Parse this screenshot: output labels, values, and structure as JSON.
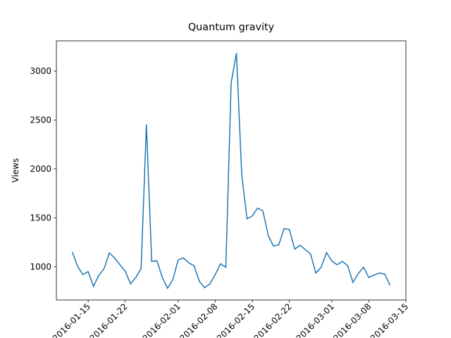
{
  "chart_data": {
    "type": "line",
    "title": "Quantum gravity",
    "ylabel": "Views",
    "x": [
      "2016-01-12",
      "2016-01-13",
      "2016-01-14",
      "2016-01-15",
      "2016-01-16",
      "2016-01-17",
      "2016-01-18",
      "2016-01-19",
      "2016-01-20",
      "2016-01-21",
      "2016-01-22",
      "2016-01-23",
      "2016-01-24",
      "2016-01-25",
      "2016-01-26",
      "2016-01-27",
      "2016-01-28",
      "2016-01-29",
      "2016-01-30",
      "2016-01-31",
      "2016-02-01",
      "2016-02-02",
      "2016-02-03",
      "2016-02-04",
      "2016-02-05",
      "2016-02-06",
      "2016-02-07",
      "2016-02-08",
      "2016-02-09",
      "2016-02-10",
      "2016-02-11",
      "2016-02-12",
      "2016-02-13",
      "2016-02-14",
      "2016-02-15",
      "2016-02-16",
      "2016-02-17",
      "2016-02-18",
      "2016-02-19",
      "2016-02-20",
      "2016-02-21",
      "2016-02-22",
      "2016-02-23",
      "2016-02-24",
      "2016-02-25",
      "2016-02-26",
      "2016-02-27",
      "2016-02-28",
      "2016-02-29",
      "2016-03-01",
      "2016-03-02",
      "2016-03-03",
      "2016-03-04",
      "2016-03-05",
      "2016-03-06",
      "2016-03-07",
      "2016-03-08",
      "2016-03-09",
      "2016-03-10",
      "2016-03-11",
      "2016-03-12"
    ],
    "series": [
      {
        "color": "#1f77b4",
        "values": [
          1150,
          1005,
          920,
          950,
          800,
          910,
          980,
          1140,
          1090,
          1020,
          955,
          825,
          890,
          980,
          2455,
          1055,
          1060,
          890,
          780,
          870,
          1070,
          1090,
          1040,
          1010,
          850,
          785,
          825,
          920,
          1030,
          995,
          2880,
          3185,
          1940,
          1490,
          1520,
          1600,
          1570,
          1320,
          1210,
          1225,
          1390,
          1380,
          1180,
          1220,
          1175,
          1130,
          935,
          995,
          1145,
          1060,
          1020,
          1055,
          1010,
          840,
          930,
          995,
          890,
          915,
          935,
          925,
          810
        ]
      }
    ],
    "xlim": [
      "2016-01-09",
      "2016-03-15"
    ],
    "xticks": [
      "2016-01-15",
      "2016-01-22",
      "2016-02-01",
      "2016-02-08",
      "2016-02-15",
      "2016-02-22",
      "2016-03-01",
      "2016-03-08",
      "2016-03-15"
    ],
    "ylim": [
      660,
      3310
    ],
    "yticks": [
      1000,
      1500,
      2000,
      2500,
      3000
    ]
  }
}
